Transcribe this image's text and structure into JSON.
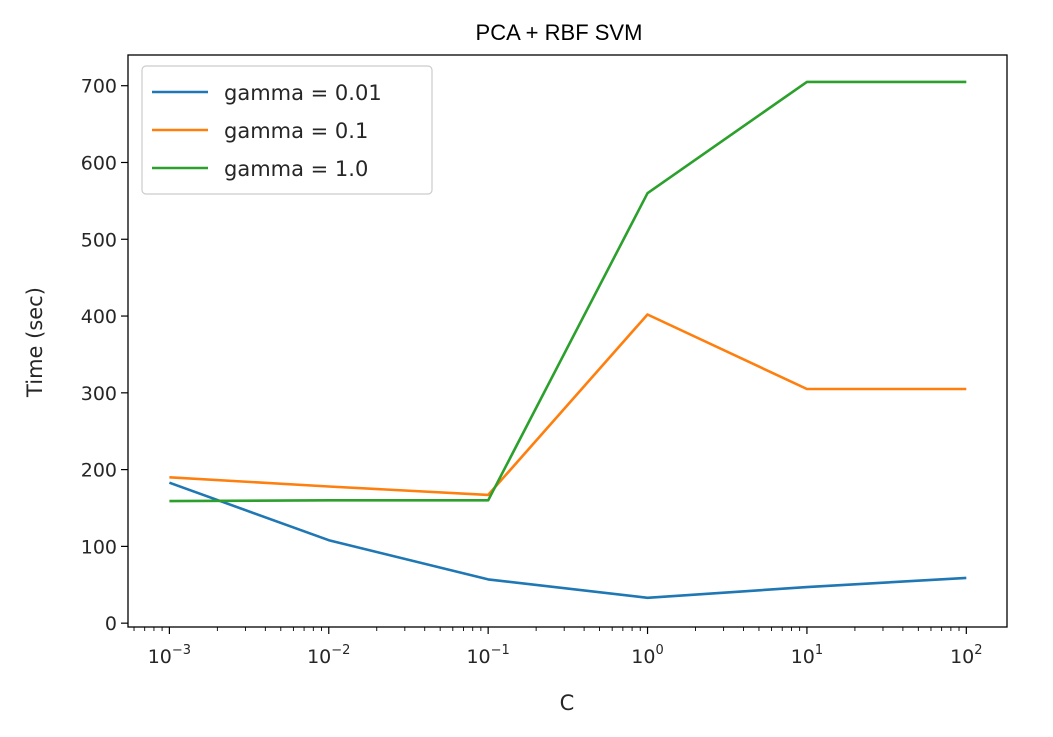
{
  "chart_data": {
    "type": "line",
    "title": "PCA + RBF SVM",
    "xlabel": "C",
    "ylabel": "Time (sec)",
    "xscale": "log",
    "x": [
      0.001,
      0.01,
      0.1,
      1,
      10,
      100
    ],
    "xlim": [
      0.00055,
      180
    ],
    "ylim": [
      -5,
      740
    ],
    "xticks": [
      {
        "value": 0.001,
        "base": "10",
        "exp": "−3"
      },
      {
        "value": 0.01,
        "base": "10",
        "exp": "−2"
      },
      {
        "value": 0.1,
        "base": "10",
        "exp": "−1"
      },
      {
        "value": 1,
        "base": "10",
        "exp": "0"
      },
      {
        "value": 10,
        "base": "10",
        "exp": "1"
      },
      {
        "value": 100,
        "base": "10",
        "exp": "2"
      }
    ],
    "yticks": [
      0,
      100,
      200,
      300,
      400,
      500,
      600,
      700
    ],
    "grid": false,
    "legend": "top-left",
    "series": [
      {
        "name": "gamma = 0.01",
        "color": "#1f77b4",
        "values": [
          183,
          108,
          57,
          33,
          47,
          59
        ]
      },
      {
        "name": "gamma = 0.1",
        "color": "#ff7f0e",
        "values": [
          190,
          178,
          167,
          402,
          305,
          305
        ]
      },
      {
        "name": "gamma = 1.0",
        "color": "#2ca02c",
        "values": [
          159,
          160,
          160,
          560,
          705,
          705
        ]
      }
    ]
  }
}
